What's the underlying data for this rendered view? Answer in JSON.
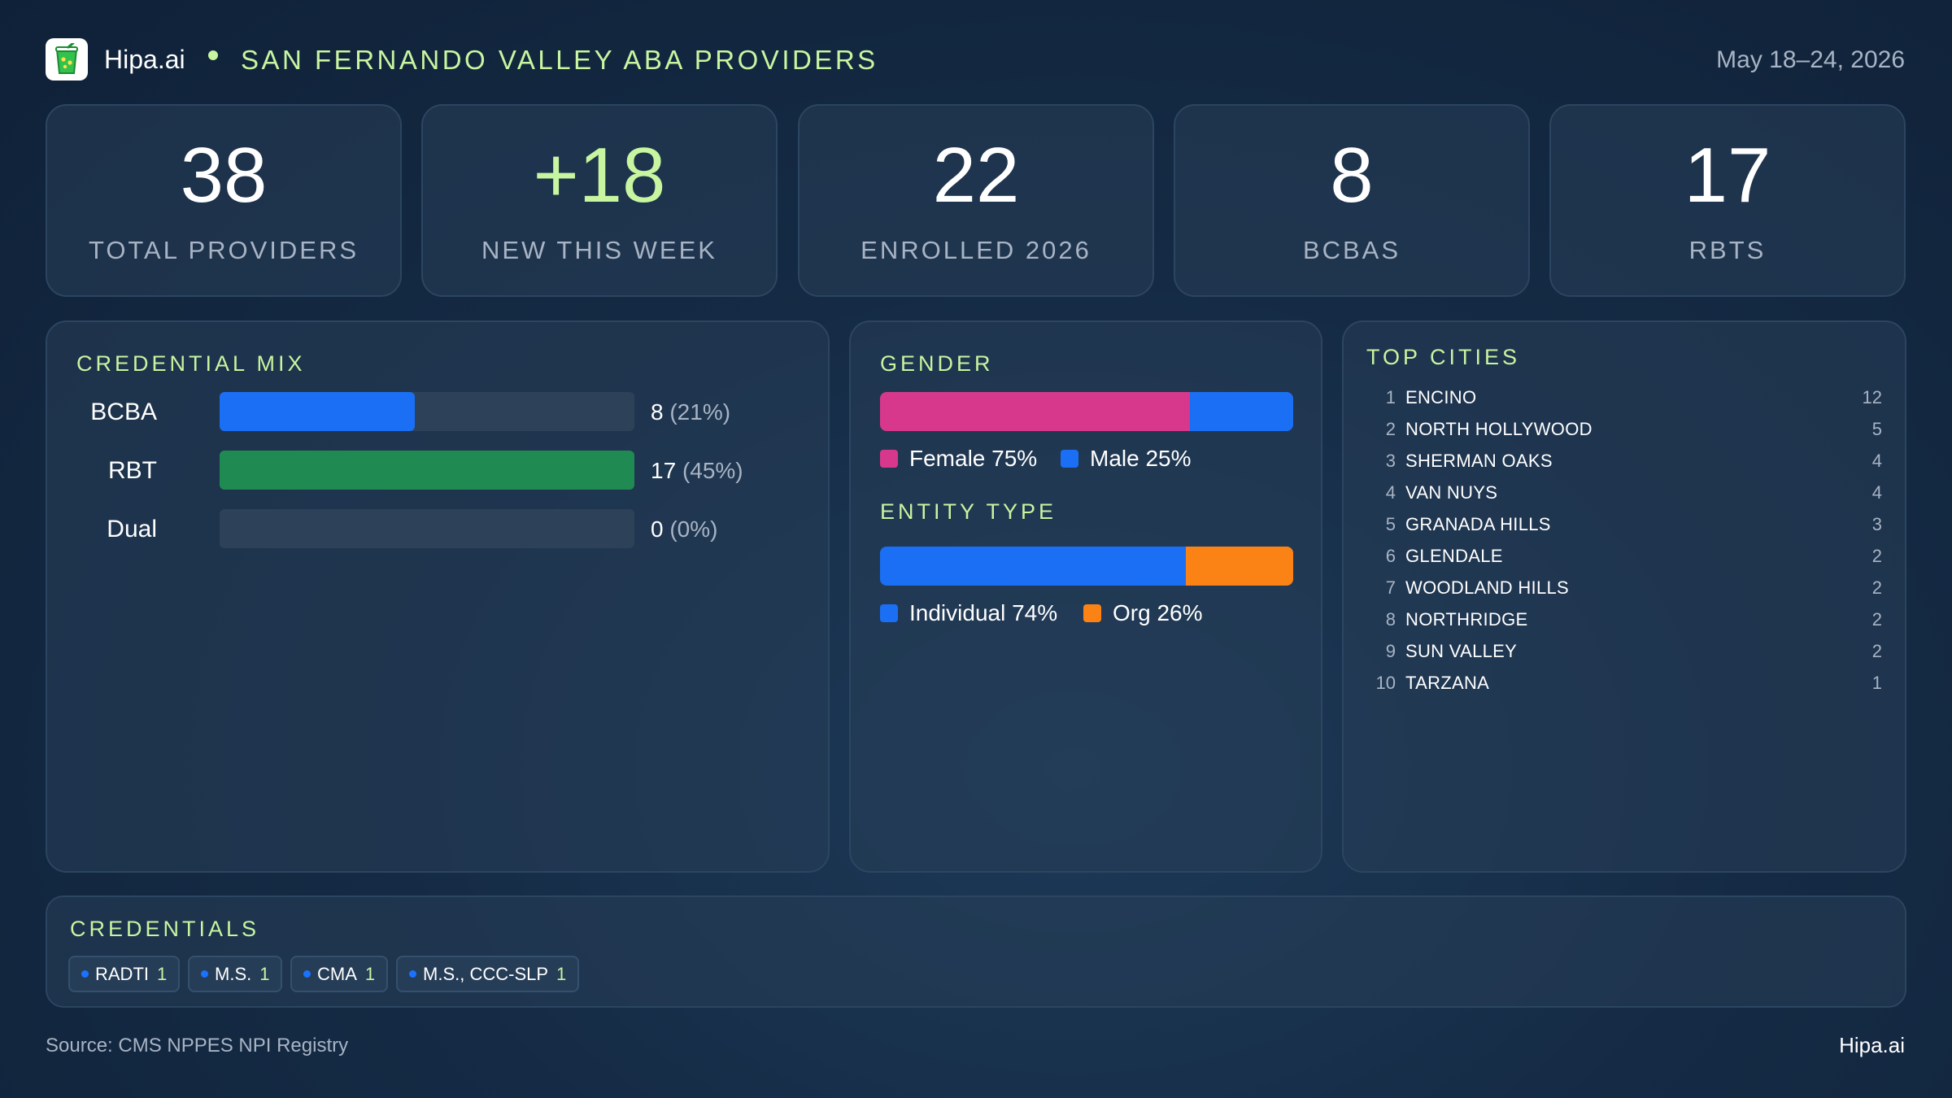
{
  "header": {
    "brand": "Hipa.ai",
    "title": "SAN FERNANDO VALLEY ABA PROVIDERS",
    "date_range": "May 18–24, 2026"
  },
  "stats": [
    {
      "value": "38",
      "label": "TOTAL PROVIDERS",
      "color": "#ffffff"
    },
    {
      "value": "+18",
      "label": "NEW THIS WEEK",
      "color": "#c8f5a0"
    },
    {
      "value": "22",
      "label": "ENROLLED 2026",
      "color": "#ffffff"
    },
    {
      "value": "8",
      "label": "BCBAS",
      "color": "#ffffff"
    },
    {
      "value": "17",
      "label": "RBTS",
      "color": "#ffffff"
    }
  ],
  "credential_mix": {
    "title": "CREDENTIAL MIX",
    "rows": [
      {
        "label": "BCBA",
        "count": "8",
        "pct": "(21%)",
        "fraction": 0.47,
        "color": "#1a6ff5"
      },
      {
        "label": "RBT",
        "count": "17",
        "pct": "(45%)",
        "fraction": 1.0,
        "color": "#1f8a52"
      },
      {
        "label": "Dual",
        "count": "0",
        "pct": "(0%)",
        "fraction": 0.0,
        "color": "#2d4259"
      }
    ]
  },
  "gender": {
    "title": "GENDER",
    "segments": [
      {
        "label": "Female 75%",
        "fraction": 0.75,
        "color": "#d8388c"
      },
      {
        "label": "Male 25%",
        "fraction": 0.25,
        "color": "#1a6ff5"
      }
    ]
  },
  "entity_type": {
    "title": "ENTITY TYPE",
    "segments": [
      {
        "label": "Individual 74%",
        "fraction": 0.74,
        "color": "#1a6ff5"
      },
      {
        "label": "Org 26%",
        "fraction": 0.26,
        "color": "#fb8316"
      }
    ]
  },
  "top_cities": {
    "title": "TOP CITIES",
    "items": [
      {
        "rank": "1",
        "name": "ENCINO",
        "count": "12"
      },
      {
        "rank": "2",
        "name": "NORTH HOLLYWOOD",
        "count": "5"
      },
      {
        "rank": "3",
        "name": "SHERMAN OAKS",
        "count": "4"
      },
      {
        "rank": "4",
        "name": "VAN NUYS",
        "count": "4"
      },
      {
        "rank": "5",
        "name": "GRANADA HILLS",
        "count": "3"
      },
      {
        "rank": "6",
        "name": "GLENDALE",
        "count": "2"
      },
      {
        "rank": "7",
        "name": "WOODLAND HILLS",
        "count": "2"
      },
      {
        "rank": "8",
        "name": "NORTHRIDGE",
        "count": "2"
      },
      {
        "rank": "9",
        "name": "SUN VALLEY",
        "count": "2"
      },
      {
        "rank": "10",
        "name": "TARZANA",
        "count": "1"
      }
    ]
  },
  "credentials": {
    "title": "CREDENTIALS",
    "chips": [
      {
        "label": "RADTI",
        "count": "1"
      },
      {
        "label": "M.S.",
        "count": "1"
      },
      {
        "label": "CMA",
        "count": "1"
      },
      {
        "label": "M.S., CCC-SLP",
        "count": "1"
      }
    ]
  },
  "footer": {
    "source": "Source: CMS NPPES NPI Registry",
    "brand": "Hipa.ai"
  },
  "icons": {
    "logo": "drink-cup-icon"
  }
}
